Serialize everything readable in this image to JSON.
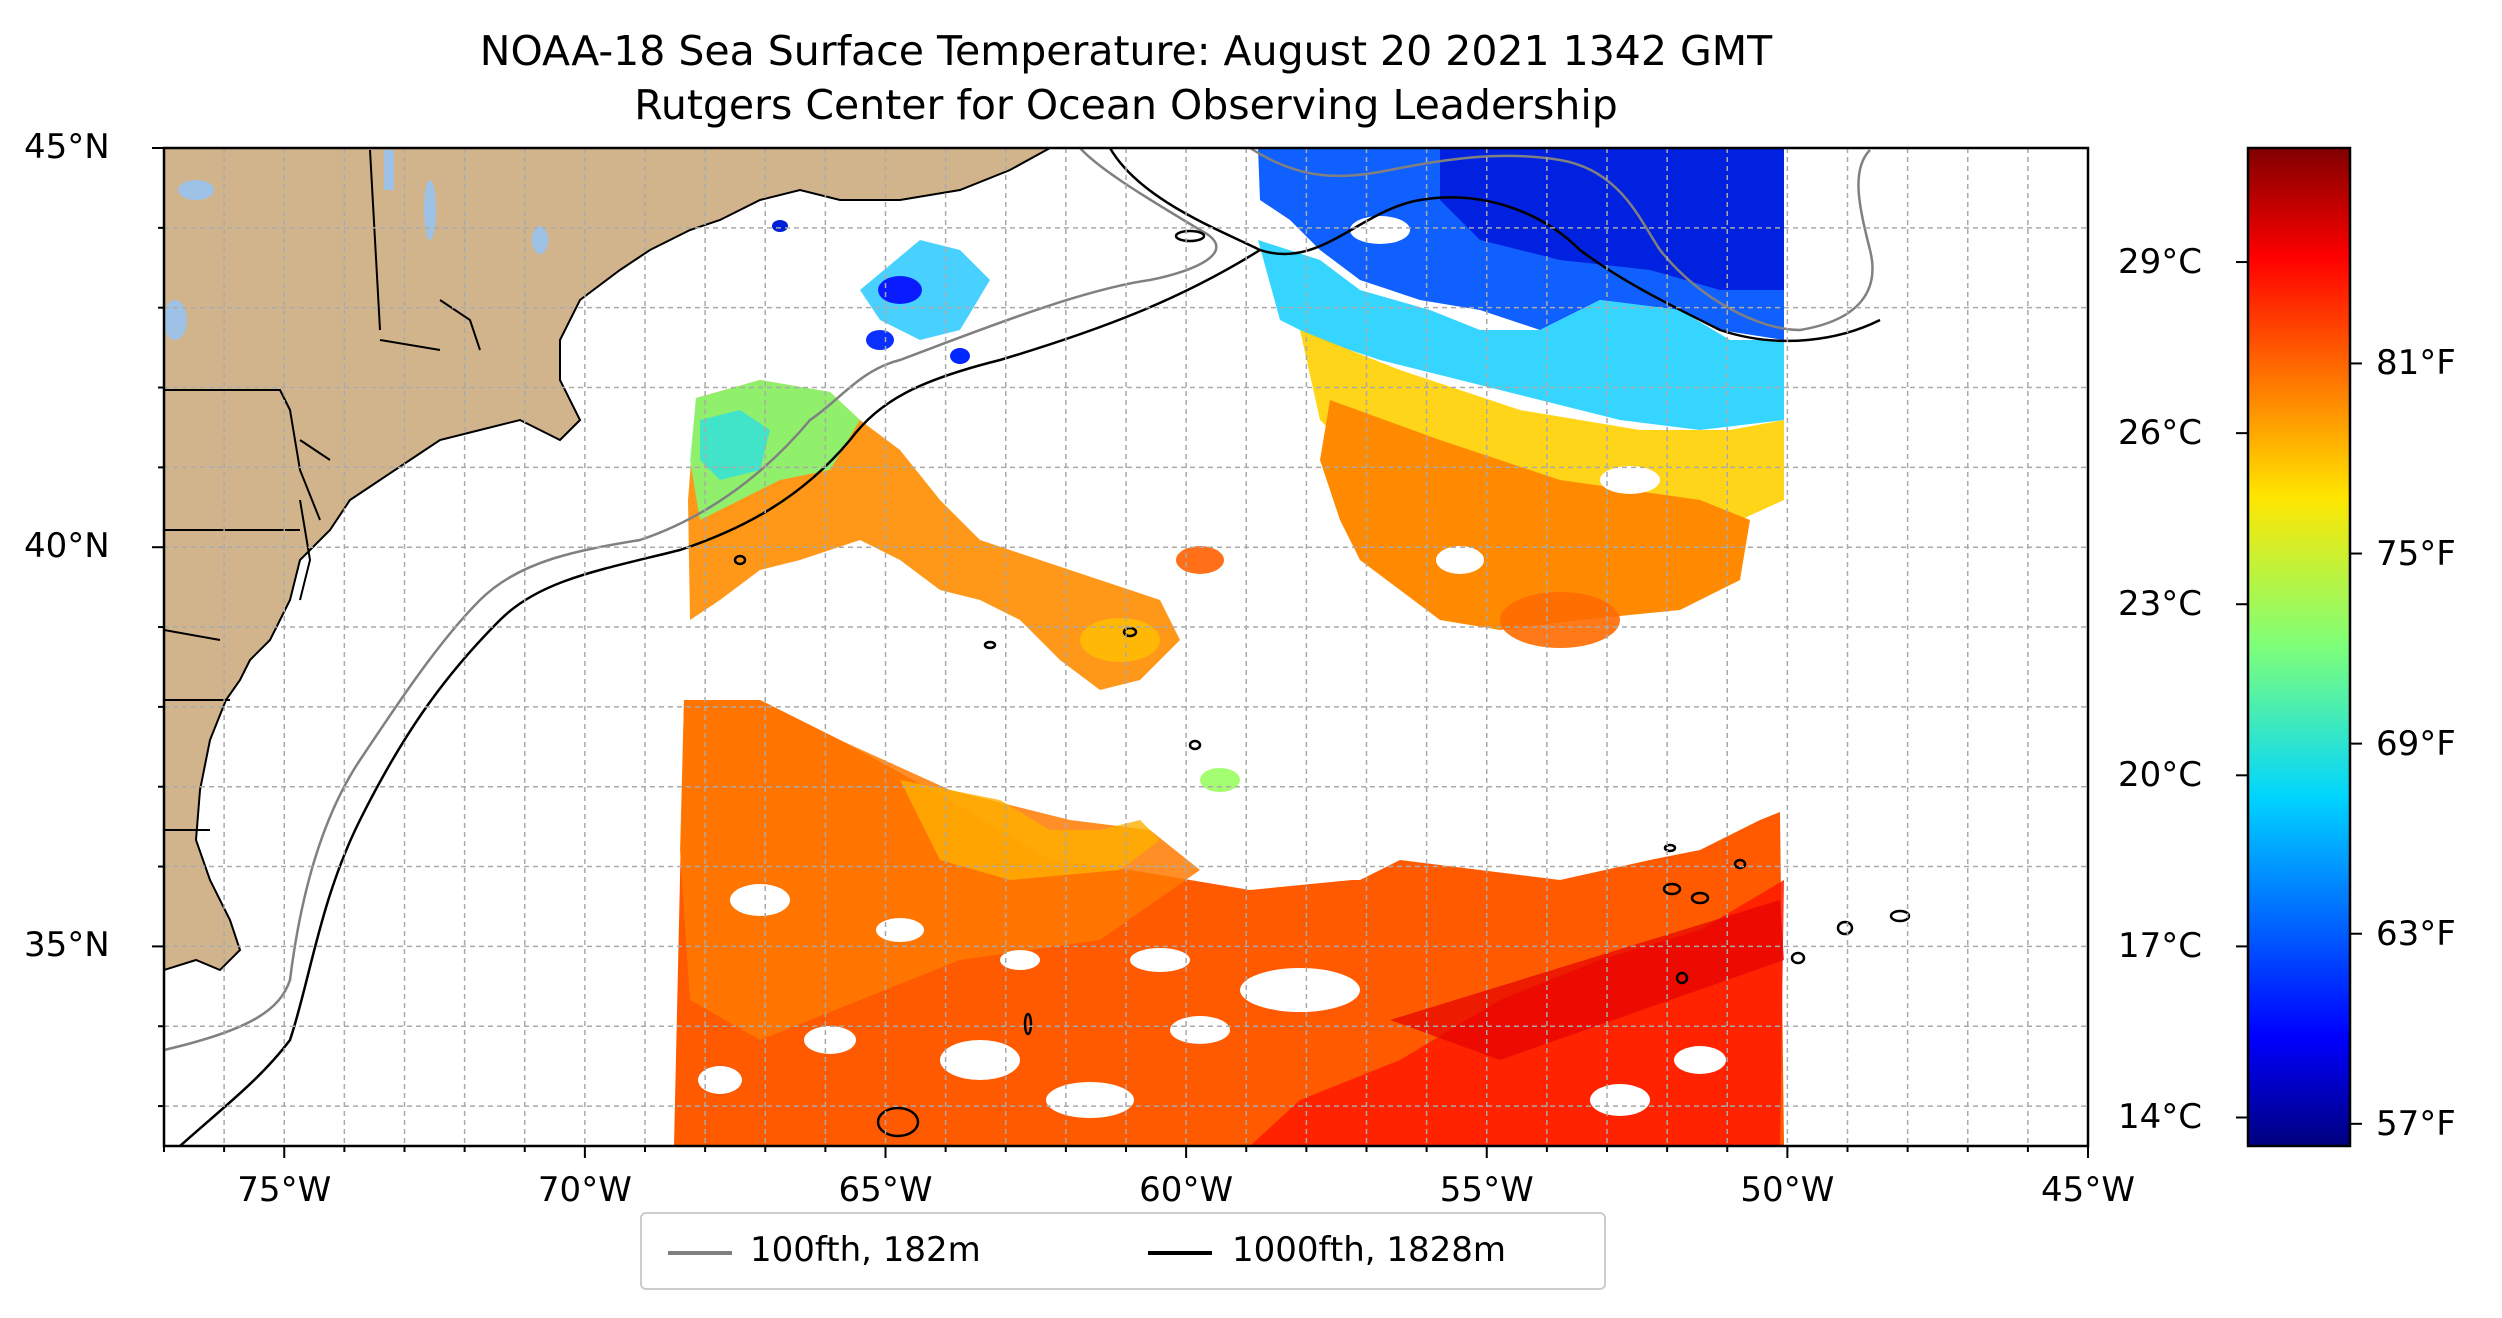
{
  "title": "NOAA-18 Sea Surface Temperature: August 20 2021 1342 GMT",
  "subtitle": "Rutgers Center for Ocean Observing Leadership",
  "map": {
    "lon_range": [
      -77,
      -45
    ],
    "lat_range": [
      32.5,
      45
    ],
    "lat_ticks": [
      {
        "value": 45,
        "label": "45°N"
      },
      {
        "value": 40,
        "label": "40°N"
      },
      {
        "value": 35,
        "label": "35°N"
      }
    ],
    "lon_ticks": [
      {
        "value": -75,
        "label": "75°W"
      },
      {
        "value": -70,
        "label": "70°W"
      },
      {
        "value": -65,
        "label": "65°W"
      },
      {
        "value": -60,
        "label": "60°W"
      },
      {
        "value": -55,
        "label": "55°W"
      },
      {
        "value": -50,
        "label": "50°W"
      },
      {
        "value": -45,
        "label": "45°W"
      }
    ],
    "grid": true,
    "land_color": "#d2b48c",
    "water_body_color": "#9ec2e6",
    "colormap": "jet"
  },
  "colorbar": {
    "celsius": [
      {
        "value": 29,
        "label": "29°C"
      },
      {
        "value": 26,
        "label": "26°C"
      },
      {
        "value": 23,
        "label": "23°C"
      },
      {
        "value": 20,
        "label": "20°C"
      },
      {
        "value": 17,
        "label": "17°C"
      },
      {
        "value": 14,
        "label": "14°C"
      }
    ],
    "fahrenheit": [
      {
        "value": 81,
        "label": "81°F"
      },
      {
        "value": 75,
        "label": "75°F"
      },
      {
        "value": 69,
        "label": "69°F"
      },
      {
        "value": 63,
        "label": "63°F"
      },
      {
        "value": 57,
        "label": "57°F"
      }
    ],
    "range_c": [
      13.5,
      31
    ]
  },
  "legend": {
    "items": [
      {
        "label": "100fth, 182m",
        "color": "#808080"
      },
      {
        "label": "1000fth, 1828m",
        "color": "#000000"
      }
    ]
  }
}
